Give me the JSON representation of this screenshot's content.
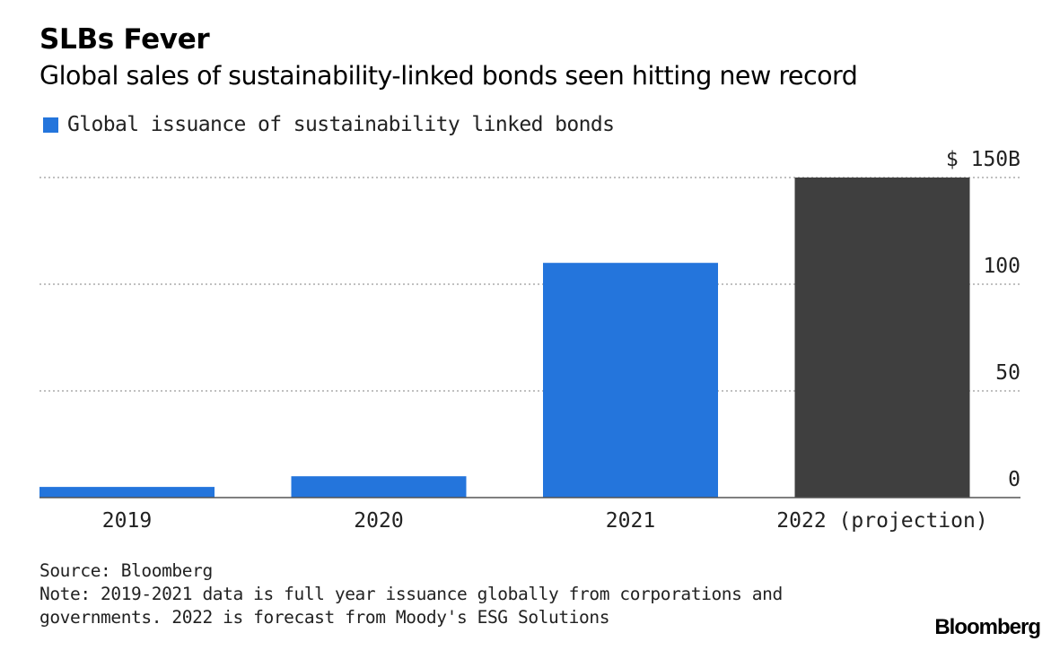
{
  "header": {
    "title": "SLBs Fever",
    "subtitle": "Global sales of sustainability-linked bonds seen hitting new record"
  },
  "legend": {
    "label": "Global issuance of sustainability linked bonds",
    "color": "#2475dc"
  },
  "chart_data": {
    "type": "bar",
    "categories": [
      "2019",
      "2020",
      "2021",
      "2022 (projection)"
    ],
    "values": [
      5,
      10,
      110,
      150
    ],
    "bar_colors": [
      "#2475dc",
      "#2475dc",
      "#2475dc",
      "#3f3f3f"
    ],
    "yticks": [
      {
        "value": 0,
        "label": "0"
      },
      {
        "value": 50,
        "label": "50"
      },
      {
        "value": 100,
        "label": "100"
      },
      {
        "value": 150,
        "label": "$ 150B"
      }
    ],
    "ylim": [
      0,
      150
    ],
    "y_axis_position": "right",
    "grid": true,
    "legend_position": "top-left",
    "series": [
      {
        "name": "Global issuance of sustainability linked bonds",
        "values": [
          5,
          10,
          110,
          150
        ]
      }
    ]
  },
  "footer": {
    "source": "Source: Bloomberg",
    "note_line1": "Note: 2019-2021 data is full year issuance globally from corporations and",
    "note_line2": "governments. 2022 is forecast from Moody's ESG Solutions"
  },
  "brand": "Bloomberg"
}
